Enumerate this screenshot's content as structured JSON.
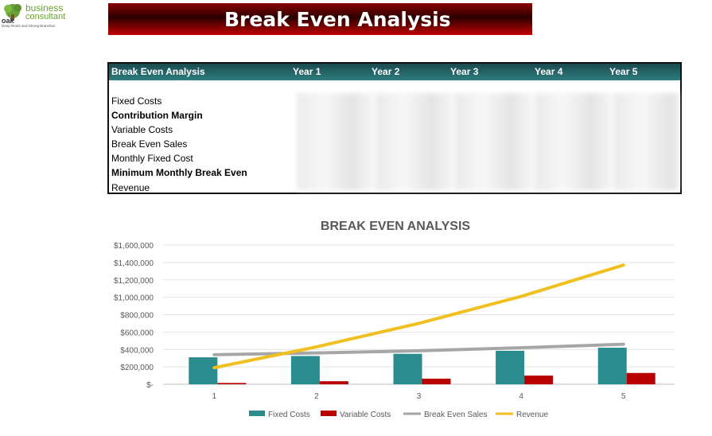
{
  "logo": {
    "line1": "business",
    "line2": "consultant",
    "brand": "oak",
    "tagline": "Deep Roots and Strong Branches"
  },
  "banner": {
    "title": "Break Even Analysis"
  },
  "table": {
    "header": [
      "Break Even Analysis",
      "Year 1",
      "Year 2",
      "Year 3",
      "Year 4",
      "Year 5"
    ],
    "rows": [
      {
        "label": "Fixed Costs",
        "bold": false
      },
      {
        "label": "Contribution Margin",
        "bold": true
      },
      {
        "label": "Variable Costs",
        "bold": false
      },
      {
        "label": "Break Even Sales",
        "bold": false
      },
      {
        "label": "Monthly Fixed Cost",
        "bold": false
      },
      {
        "label": "Minimum Monthly Break Even",
        "bold": true
      },
      {
        "label": "Revenue",
        "bold": false
      }
    ]
  },
  "chart_data": {
    "type": "bar",
    "title": "BREAK EVEN ANALYSIS",
    "categories": [
      "1",
      "2",
      "3",
      "4",
      "5"
    ],
    "ylim": [
      0,
      1600000
    ],
    "yticks": [
      0,
      200000,
      400000,
      600000,
      800000,
      1000000,
      1200000,
      1400000,
      1600000
    ],
    "ytick_labels": [
      "$-",
      "$200,000",
      "$400,000",
      "$600,000",
      "$800,000",
      "$1,000,000",
      "$1,200,000",
      "$1,400,000",
      "$1,600,000"
    ],
    "legend_position": "bottom",
    "grid": true,
    "series": [
      {
        "name": "Fixed Costs",
        "kind": "bar",
        "color": "#2a8c8c",
        "values": [
          310000,
          325000,
          350000,
          385000,
          420000
        ]
      },
      {
        "name": "Variable Costs",
        "kind": "bar",
        "color": "#b80000",
        "values": [
          15000,
          35000,
          65000,
          100000,
          130000
        ]
      },
      {
        "name": "Break Even Sales",
        "kind": "line",
        "color": "#a6a6a6",
        "values": [
          340000,
          360000,
          385000,
          420000,
          460000
        ]
      },
      {
        "name": "Revenue",
        "kind": "line",
        "color": "#f0c020",
        "values": [
          190000,
          430000,
          700000,
          1010000,
          1370000
        ]
      }
    ]
  }
}
